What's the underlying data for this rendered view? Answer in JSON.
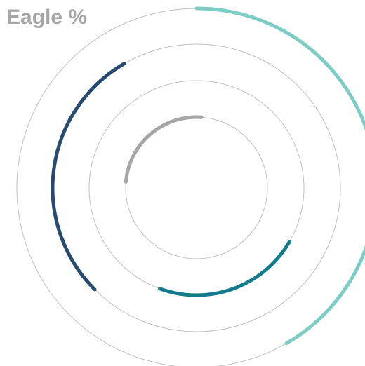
{
  "chart_data": {
    "type": "radial_arc",
    "title": "Eagle %",
    "legend": "none",
    "grid": true,
    "colors": {
      "guide": "#c0c0c0",
      "background": "#ffffff"
    },
    "series": [
      {
        "start_deg": 0,
        "end_deg": 150,
        "color": "#7ecdc4"
      },
      {
        "start_deg": 225,
        "end_deg": 330,
        "color": "#264b6e"
      },
      {
        "start_deg": 120,
        "end_deg": 200,
        "color": "#137b8b"
      },
      {
        "start_deg": 275,
        "end_deg": 364,
        "color": "#a6a6a6"
      }
    ]
  }
}
